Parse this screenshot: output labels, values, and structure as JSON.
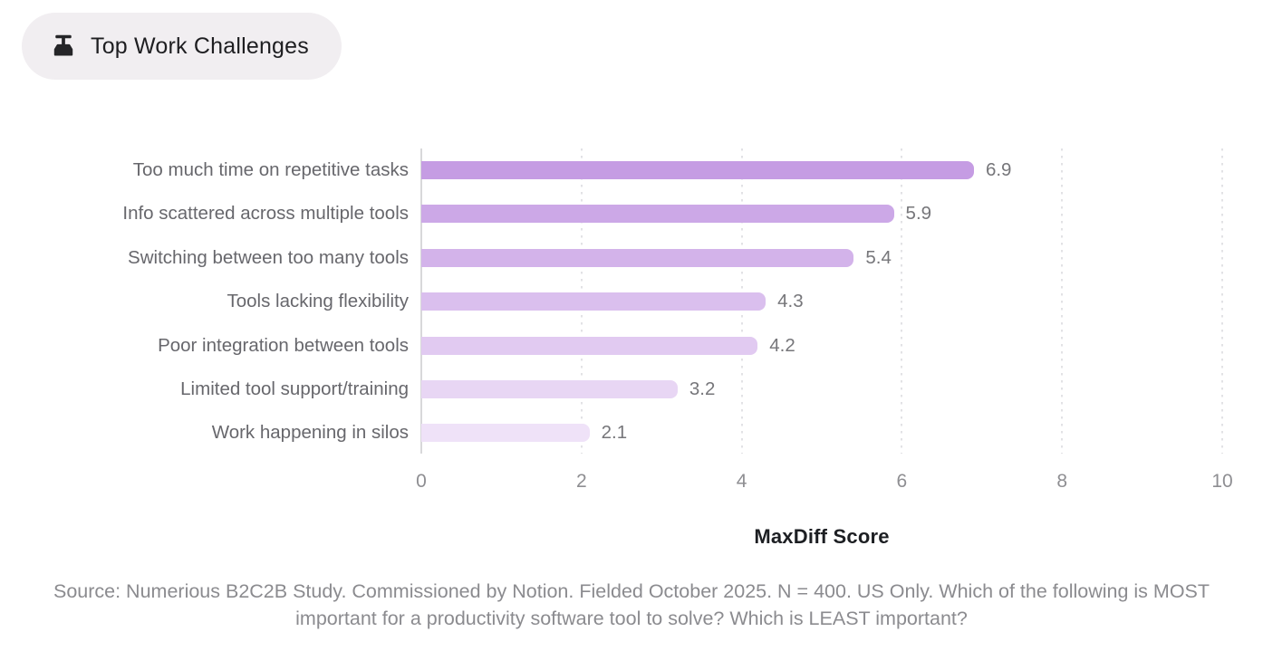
{
  "header": {
    "badge_label": "Top Work Challenges",
    "badge_icon": "broom-icon",
    "badge_bg": "#f1eef1",
    "badge_text_color": "#1e1e21"
  },
  "chart_data": {
    "type": "bar",
    "orientation": "horizontal",
    "title": "Top Work Challenges",
    "categories": [
      "Too much time on repetitive tasks",
      "Info scattered across multiple tools",
      "Switching between too many tools",
      "Tools lacking flexibility",
      "Poor integration between tools",
      "Limited tool support/training",
      "Work happening in silos"
    ],
    "values": [
      6.9,
      5.9,
      5.4,
      4.3,
      4.2,
      3.2,
      2.1
    ],
    "value_labels": [
      "6.9",
      "5.9",
      "5.4",
      "4.3",
      "4.2",
      "3.2",
      "2.1"
    ],
    "xlabel": "MaxDiff Score",
    "xlim": [
      0,
      10
    ],
    "xticks": [
      0,
      2,
      4,
      6,
      8,
      10
    ],
    "grid": "vertical-dotted",
    "legend": "none",
    "bar_colors": [
      "#c59ce3",
      "#cca8e7",
      "#d3b3ea",
      "#dabfee",
      "#e1caf1",
      "#e8d6f4",
      "#efe2f8"
    ],
    "colors": {
      "axis_line": "#d8d8da",
      "gridline": "#e2e2e5",
      "category_label": "#67676c",
      "value_label": "#76767a",
      "tick_label": "#8e8e92",
      "xlabel_color": "#1d1f23"
    }
  },
  "footer": {
    "source_text": "Source: Numerious B2C2B Study. Commissioned by Notion. Fielded October 2025. N = 400. US Only. Which of the following is MOST important for a productivity software tool to solve? Which is LEAST important?"
  }
}
